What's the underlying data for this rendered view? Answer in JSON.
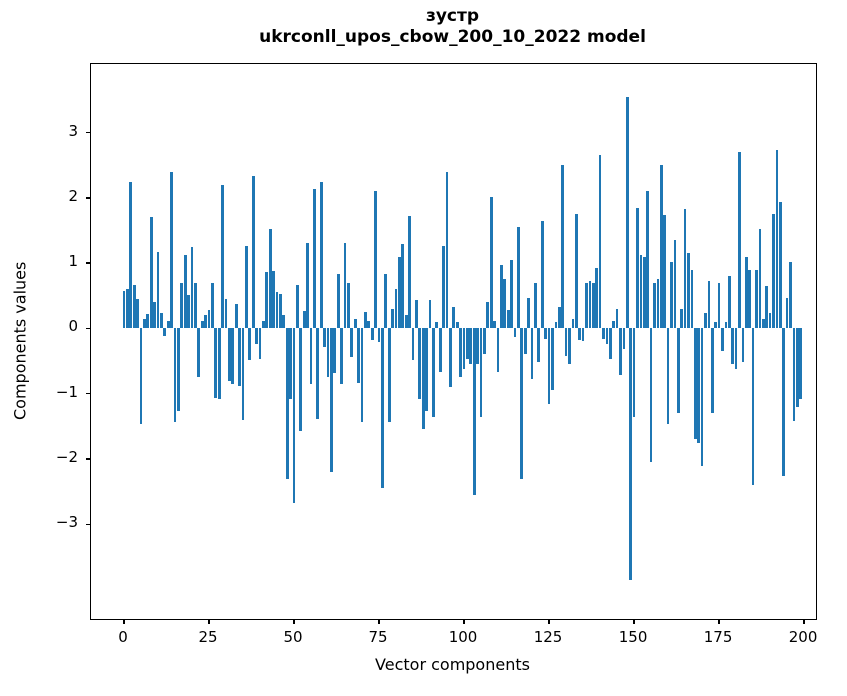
{
  "figure": {
    "title_line1": "зустр",
    "title_line2": "ukrconll_upos_cbow_200_10_2022 model",
    "xlabel": "Vector components",
    "ylabel": "Components values"
  },
  "chart_data": {
    "type": "bar",
    "title": "зустр",
    "subtitle": "ukrconll_upos_cbow_200_10_2022 model",
    "xlabel": "Vector components",
    "ylabel": "Components values",
    "bar_color": "#1f77b4",
    "grid": false,
    "legend": null,
    "x_ticks": [
      0,
      25,
      50,
      75,
      100,
      125,
      150,
      175,
      200
    ],
    "y_ticks": [
      3,
      2,
      1,
      0,
      -1,
      -2,
      -3
    ],
    "xlim": [
      -9.7,
      203.5
    ],
    "ylim": [
      -4.45,
      4.05
    ],
    "x_start": 0,
    "values": [
      0.58,
      0.61,
      2.25,
      0.67,
      0.45,
      -1.47,
      0.15,
      0.22,
      1.71,
      0.41,
      1.17,
      0.23,
      -0.11,
      0.12,
      2.4,
      -1.44,
      -1.26,
      0.7,
      1.13,
      0.51,
      1.24,
      0.69,
      -0.75,
      0.12,
      0.2,
      0.28,
      0.69,
      -1.06,
      -1.08,
      2.2,
      0.45,
      -0.8,
      -0.85,
      0.38,
      -0.88,
      -1.4,
      1.26,
      -0.49,
      2.33,
      -0.24,
      -0.47,
      0.12,
      0.87,
      1.53,
      0.88,
      0.56,
      0.52,
      0.2,
      -2.31,
      -1.08,
      -2.68,
      0.66,
      -1.57,
      0.26,
      1.31,
      -0.85,
      2.14,
      -1.39,
      2.25,
      -0.29,
      -0.75,
      -2.2,
      -0.69,
      0.83,
      -0.85,
      1.31,
      0.69,
      -0.43,
      0.15,
      -0.83,
      -1.44,
      0.25,
      0.12,
      -0.18,
      2.11,
      -0.21,
      -2.45,
      0.84,
      -1.44,
      0.3,
      0.61,
      1.1,
      1.3,
      0.2,
      1.72,
      -0.49,
      0.44,
      -1.08,
      -1.54,
      -1.26,
      0.44,
      -1.36,
      0.1,
      -0.67,
      1.27,
      2.4,
      -0.9,
      0.33,
      0.1,
      -0.75,
      -0.62,
      -0.47,
      -0.54,
      -2.55,
      -0.54,
      -1.36,
      -0.39,
      0.41,
      2.02,
      0.12,
      -0.67,
      0.97,
      0.76,
      0.28,
      1.05,
      -0.13,
      1.55,
      -2.3,
      -0.39,
      0.46,
      -0.77,
      0.7,
      -0.52,
      1.64,
      -0.16,
      -1.16,
      -0.95,
      0.1,
      0.33,
      2.5,
      -0.42,
      -0.54,
      0.15,
      1.76,
      -0.18,
      -0.2,
      0.7,
      0.72,
      0.69,
      0.92,
      2.65,
      -0.16,
      -0.24,
      -0.47,
      0.12,
      0.3,
      -0.72,
      -0.31,
      3.55,
      -3.85,
      -1.35,
      1.85,
      1.13,
      1.1,
      2.1,
      -2.05,
      0.69,
      0.75,
      2.5,
      1.74,
      -1.47,
      1.02,
      1.35,
      -1.29,
      0.3,
      1.83,
      1.15,
      0.89,
      -1.7,
      -1.75,
      -2.1,
      0.24,
      0.72,
      -1.29,
      0.1,
      0.69,
      -0.35,
      0.1,
      0.8,
      -0.54,
      -0.62,
      2.7,
      -0.52,
      1.1,
      0.89,
      -2.4,
      0.9,
      1.52,
      0.15,
      0.65,
      0.23,
      1.76,
      2.73,
      1.94,
      -2.26,
      0.46,
      1.02,
      -1.42,
      -1.21,
      -1.08
    ]
  }
}
